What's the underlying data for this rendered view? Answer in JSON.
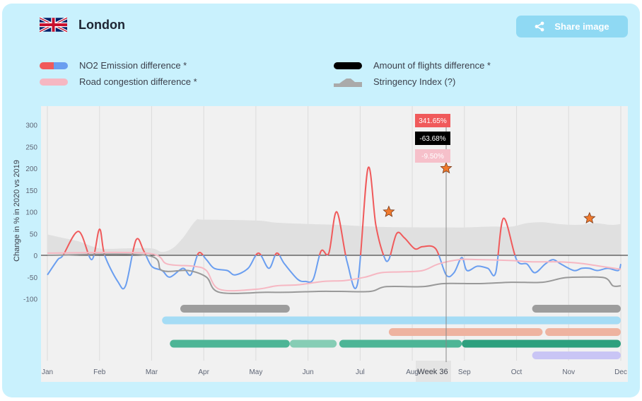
{
  "header": {
    "city": "London",
    "flag_icon": "uk-flag-icon"
  },
  "share": {
    "label": "Share image",
    "icon": "share-icon"
  },
  "legend": {
    "no2": "NO2 Emission difference *",
    "road": "Road congestion difference *",
    "flights": "Amount of flights difference *",
    "stringency": "Stringency Index (?)"
  },
  "colors": {
    "no2_up": "#f05a5b",
    "no2_down": "#6a9ef0",
    "road": "#f6b7c2",
    "flights": "#000000",
    "stringency": "#e0e0e0",
    "flight_line": "#999999",
    "background": "#c9f1fd"
  },
  "tooltip": {
    "week_label": "Week 36",
    "no2": "341.65%",
    "flights": "-63.68%",
    "road": "-9.50%"
  },
  "chart_data": {
    "type": "line",
    "ylabel": "Change in % in 2020 vs 2019",
    "ylim": [
      -100,
      300
    ],
    "yticks": [
      300,
      250,
      200,
      150,
      100,
      50,
      0,
      -50,
      -100
    ],
    "xlim": [
      0,
      11
    ],
    "x_tick_labels": [
      "Jan",
      "Feb",
      "Mar",
      "Apr",
      "May",
      "Jun",
      "Jul",
      "Aug",
      "Sep",
      "Oct",
      "Nov",
      "Dec"
    ],
    "grid": "vertical",
    "series": [
      {
        "name": "NO2 Emission difference *",
        "color_key": "no2",
        "x": [
          0,
          0.2,
          0.3,
          0.6,
          0.85,
          1.0,
          1.1,
          1.35,
          1.5,
          1.7,
          1.85,
          2.0,
          2.2,
          2.35,
          2.6,
          2.75,
          2.9,
          3.05,
          3.2,
          3.45,
          3.6,
          3.85,
          4.05,
          4.25,
          4.4,
          4.55,
          4.8,
          4.95,
          5.1,
          5.25,
          5.4,
          5.55,
          5.75,
          5.95,
          6.15,
          6.3,
          6.45,
          6.55,
          6.7,
          6.85,
          7.05,
          7.2,
          7.45,
          7.65,
          7.8,
          7.95,
          8.05,
          8.25,
          8.45,
          8.6,
          8.75,
          9.0,
          9.2,
          9.35,
          9.55,
          9.7,
          9.85,
          10.1,
          10.25,
          10.4,
          10.55,
          10.75,
          10.95,
          11.0
        ],
        "y": [
          -45,
          -10,
          0,
          55,
          -10,
          60,
          0,
          -60,
          -70,
          35,
          10,
          -25,
          -35,
          -50,
          -30,
          -45,
          5,
          -10,
          -30,
          -35,
          -45,
          -30,
          5,
          -30,
          5,
          -20,
          -55,
          -60,
          -55,
          10,
          5,
          100,
          -15,
          -65,
          200,
          70,
          0,
          -10,
          50,
          40,
          15,
          20,
          15,
          -45,
          -40,
          -5,
          -35,
          -25,
          -30,
          -40,
          85,
          -10,
          -20,
          -40,
          -20,
          -10,
          -20,
          -35,
          -30,
          -30,
          -35,
          -30,
          -35,
          -20
        ]
      },
      {
        "name": "Road congestion difference *",
        "color_key": "road",
        "x": [
          0,
          1.9,
          2.3,
          2.8,
          3.05,
          3.3,
          4.0,
          4.4,
          4.8,
          5.3,
          5.7,
          6.1,
          6.4,
          6.8,
          7.2,
          7.5,
          7.9,
          8.3,
          8.9,
          9.3,
          9.8,
          10.2,
          10.6,
          11.0
        ],
        "y": [
          5,
          5,
          -20,
          -25,
          -35,
          -78,
          -78,
          -70,
          -68,
          -60,
          -58,
          -50,
          -40,
          -38,
          -35,
          -20,
          -10,
          -10,
          -12,
          -15,
          -15,
          -18,
          -25,
          -32
        ]
      },
      {
        "name": "Amount of flights difference *",
        "color_key": "flight_line",
        "x": [
          0,
          1.9,
          2.2,
          2.7,
          3.05,
          3.3,
          4.2,
          4.6,
          5.2,
          5.6,
          6.2,
          6.5,
          7.2,
          7.6,
          8.3,
          8.9,
          9.5,
          9.9,
          10.3,
          10.7,
          10.85,
          11.0
        ],
        "y": [
          0,
          0,
          -35,
          -35,
          -50,
          -85,
          -85,
          -85,
          -83,
          -83,
          -83,
          -72,
          -72,
          -65,
          -65,
          -62,
          -62,
          -52,
          -50,
          -52,
          -70,
          -70
        ]
      },
      {
        "name": "Stringency Index (?)",
        "color_key": "stringency",
        "x": [
          0,
          0.3,
          0.6,
          1.0,
          1.5,
          2.0,
          2.2,
          2.4,
          2.6,
          2.85,
          3.0,
          4.0,
          4.4,
          5.0,
          5.6,
          5.9,
          6.5,
          7.2,
          7.6,
          8.0,
          8.5,
          8.9,
          9.2,
          9.5,
          9.8,
          10.2,
          10.5,
          10.8,
          11.0
        ],
        "y": [
          48,
          40,
          32,
          16,
          16,
          16,
          8,
          16,
          40,
          80,
          82,
          80,
          75,
          72,
          70,
          68,
          65,
          64,
          64,
          64,
          66,
          66,
          74,
          76,
          72,
          70,
          74,
          70,
          72
        ]
      }
    ],
    "highlighted_points": [
      {
        "x": 6.55,
        "y": 100
      },
      {
        "x": 7.65,
        "y": 200
      },
      {
        "x": 10.4,
        "y": 85
      }
    ],
    "marker_x": 7.65,
    "restriction_bars": [
      {
        "start": 2.55,
        "end": 4.65,
        "color": "#9d9d9d"
      },
      {
        "start": 9.3,
        "end": 11.0,
        "color": "#9d9d9d"
      },
      {
        "start": 2.2,
        "end": 11.0,
        "color": "#a5dcf5"
      },
      {
        "start": 6.55,
        "end": 9.5,
        "color": "#eeb3a0"
      },
      {
        "start": 9.55,
        "end": 11.0,
        "color": "#eeb3a0"
      },
      {
        "start": 2.35,
        "end": 4.65,
        "color": "#4db596"
      },
      {
        "start": 4.65,
        "end": 5.55,
        "color": "#86cdb5"
      },
      {
        "start": 5.6,
        "end": 7.95,
        "color": "#4db596"
      },
      {
        "start": 7.95,
        "end": 11.0,
        "color": "#2da07e"
      },
      {
        "start": 9.3,
        "end": 11.0,
        "color": "#c9c5f5"
      }
    ],
    "restriction_rows": [
      0,
      0,
      1,
      2,
      2,
      3,
      3,
      3,
      3,
      4
    ]
  }
}
